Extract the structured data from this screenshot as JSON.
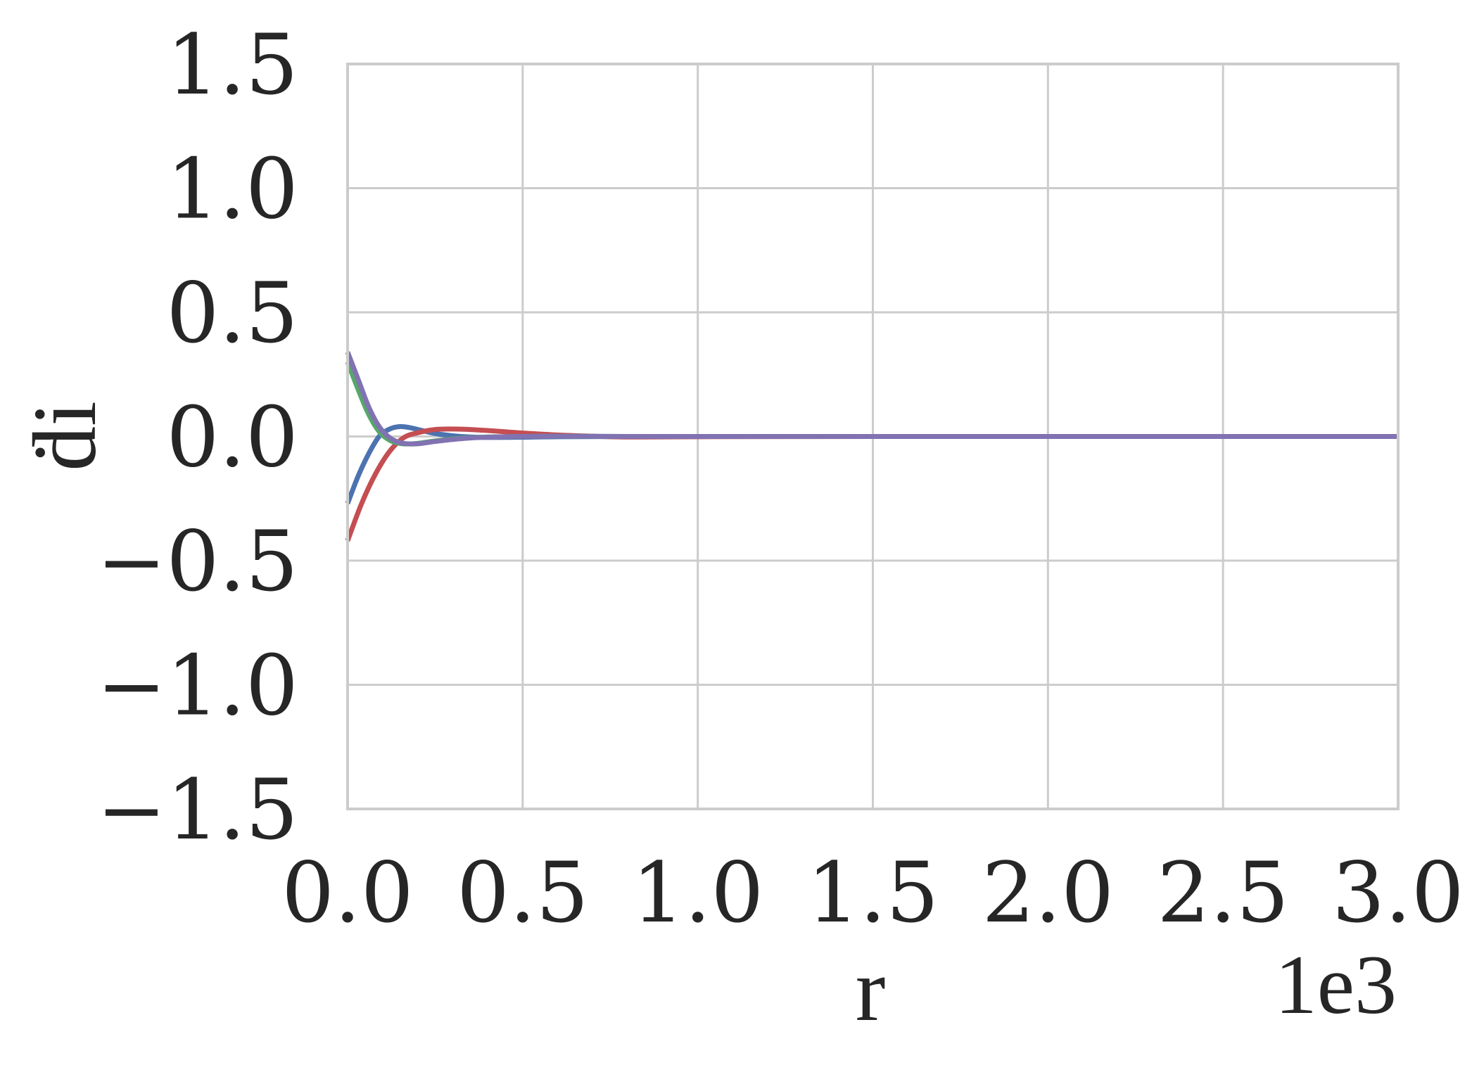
{
  "chart_data": {
    "type": "line",
    "title": "",
    "xlabel": "r",
    "ylabel": "ḋi",
    "x_offset_label": "1e3",
    "xlim": [
      0,
      3000
    ],
    "ylim": [
      -1.5,
      1.5
    ],
    "x_ticks": [
      0,
      500,
      1000,
      1500,
      2000,
      2500,
      3000
    ],
    "x_tick_labels": [
      "0.0",
      "0.5",
      "1.0",
      "1.5",
      "2.0",
      "2.5",
      "3.0"
    ],
    "y_ticks": [
      1.5,
      1.0,
      0.5,
      0.0,
      -0.5,
      -1.0,
      -1.5
    ],
    "y_tick_labels": [
      "1.5",
      "1.0",
      "0.5",
      "0.0",
      "−0.5",
      "−1.0",
      "−1.5"
    ],
    "grid": true,
    "legend": "none",
    "series": [
      {
        "color": "#4c72b0",
        "x": [
          0,
          30,
          60,
          90,
          120,
          150,
          180,
          210,
          250,
          300,
          350,
          400,
          500,
          600,
          800,
          1000,
          1500,
          2000,
          3000
        ],
        "y": [
          -0.27,
          -0.16,
          -0.07,
          0.0,
          0.03,
          0.04,
          0.035,
          0.025,
          0.012,
          0.003,
          -0.002,
          -0.004,
          -0.003,
          -0.001,
          0.0,
          0.0,
          0.0,
          0.0,
          0.0
        ]
      },
      {
        "color": "#c44e52",
        "x": [
          0,
          40,
          80,
          120,
          160,
          200,
          250,
          300,
          350,
          400,
          500,
          600,
          700,
          800,
          1000,
          1500,
          2000,
          3000
        ],
        "y": [
          -0.42,
          -0.27,
          -0.15,
          -0.06,
          -0.005,
          0.015,
          0.028,
          0.03,
          0.028,
          0.024,
          0.014,
          0.006,
          0.001,
          -0.002,
          -0.001,
          0.0,
          0.0,
          0.0
        ]
      },
      {
        "color": "#55a868",
        "x": [
          0,
          30,
          60,
          90,
          120,
          150,
          180,
          210,
          250,
          300,
          350,
          400,
          500,
          600,
          800,
          1000,
          1500,
          2000,
          3000
        ],
        "y": [
          0.3,
          0.19,
          0.09,
          0.02,
          -0.015,
          -0.028,
          -0.03,
          -0.026,
          -0.018,
          -0.01,
          -0.005,
          -0.002,
          0.0,
          0.001,
          0.0,
          0.0,
          0.0,
          0.0,
          0.0
        ]
      },
      {
        "color": "#8172b2",
        "x": [
          0,
          30,
          60,
          90,
          120,
          150,
          180,
          210,
          250,
          300,
          350,
          400,
          500,
          600,
          800,
          1000,
          1500,
          2000,
          3000
        ],
        "y": [
          0.34,
          0.23,
          0.12,
          0.04,
          -0.005,
          -0.025,
          -0.03,
          -0.028,
          -0.02,
          -0.012,
          -0.006,
          -0.003,
          0.0,
          0.001,
          0.0,
          0.0,
          0.0,
          0.0,
          0.0
        ]
      }
    ]
  }
}
